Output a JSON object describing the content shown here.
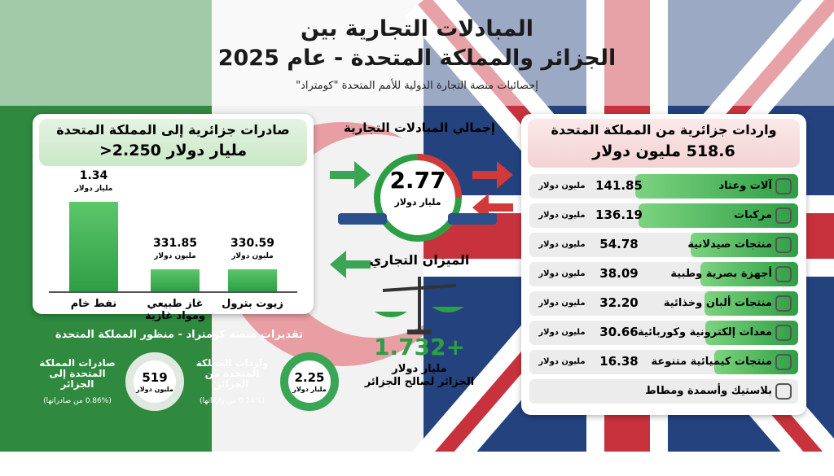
{
  "header": {
    "title_line1": "المبادلات التجارية بين",
    "title_line2": "الجزائر والمملكة المتحدة - عام 2025",
    "subtitle": "إحصائيات منصة التجارة الدولية للأمم المتحدة \"كومتراد\""
  },
  "exports": {
    "title": "صادرات جزائرية إلى المملكة المتحدة",
    "total": "2.250<",
    "total_unit": "مليار دولار",
    "items": [
      {
        "label": "نفط خام",
        "value": 1.34,
        "unit": "مليار دولار"
      },
      {
        "label": "غاز طبيعي ومواد غازية",
        "value": 331.85,
        "unit": "مليون دولار"
      },
      {
        "label": "زيوت بترول",
        "value": 330.59,
        "unit": "مليون دولار"
      }
    ]
  },
  "total_trade": {
    "title": "إجمالي المبادلات التجارية",
    "value": "2.77",
    "unit": "مليار دولار"
  },
  "balance": {
    "title": "الميزان التجاري",
    "value": "+1.732",
    "unit": "مليار دولار",
    "note": "الجزائر لصالح الجزائر"
  },
  "imports": {
    "title": "واردات جزائرية من المملكة المتحدة",
    "total": "518.6",
    "total_unit": "مليون دولار",
    "unit": "مليون دولار",
    "items": [
      {
        "label": "آلات وعتاد",
        "value": 141.85
      },
      {
        "label": "مركبات",
        "value": 136.19
      },
      {
        "label": "منتجات صيدلانية",
        "value": 54.78
      },
      {
        "label": "أجهزة بصرية وطبية",
        "value": 38.09
      },
      {
        "label": "منتجات ألبان وخذائية",
        "value": 32.2,
        "value_label": "32.20"
      },
      {
        "label": "معدات إلكترونية وكوربائية",
        "value": 30.66
      },
      {
        "label": "منتجات كيميائية متنوعة",
        "value": 16.38
      },
      {
        "label": "بلاستيك وأسمدة ومطاط",
        "value": null
      }
    ]
  },
  "comtrade": {
    "title": "تقديرات منصة كومتراد - منظور المملكة المتحدة",
    "items": [
      {
        "value": "2.25",
        "unit": "مليار دولار",
        "label": "واردات المملكة المتحدة من الجزائر",
        "note": "(0.24% من وارداتها)"
      },
      {
        "value": "519",
        "unit": "مليون دولار",
        "label": "صادرات المملكة المتحدة إلى الجزائر",
        "note": "(0.86% من صادراتها)"
      }
    ]
  }
}
